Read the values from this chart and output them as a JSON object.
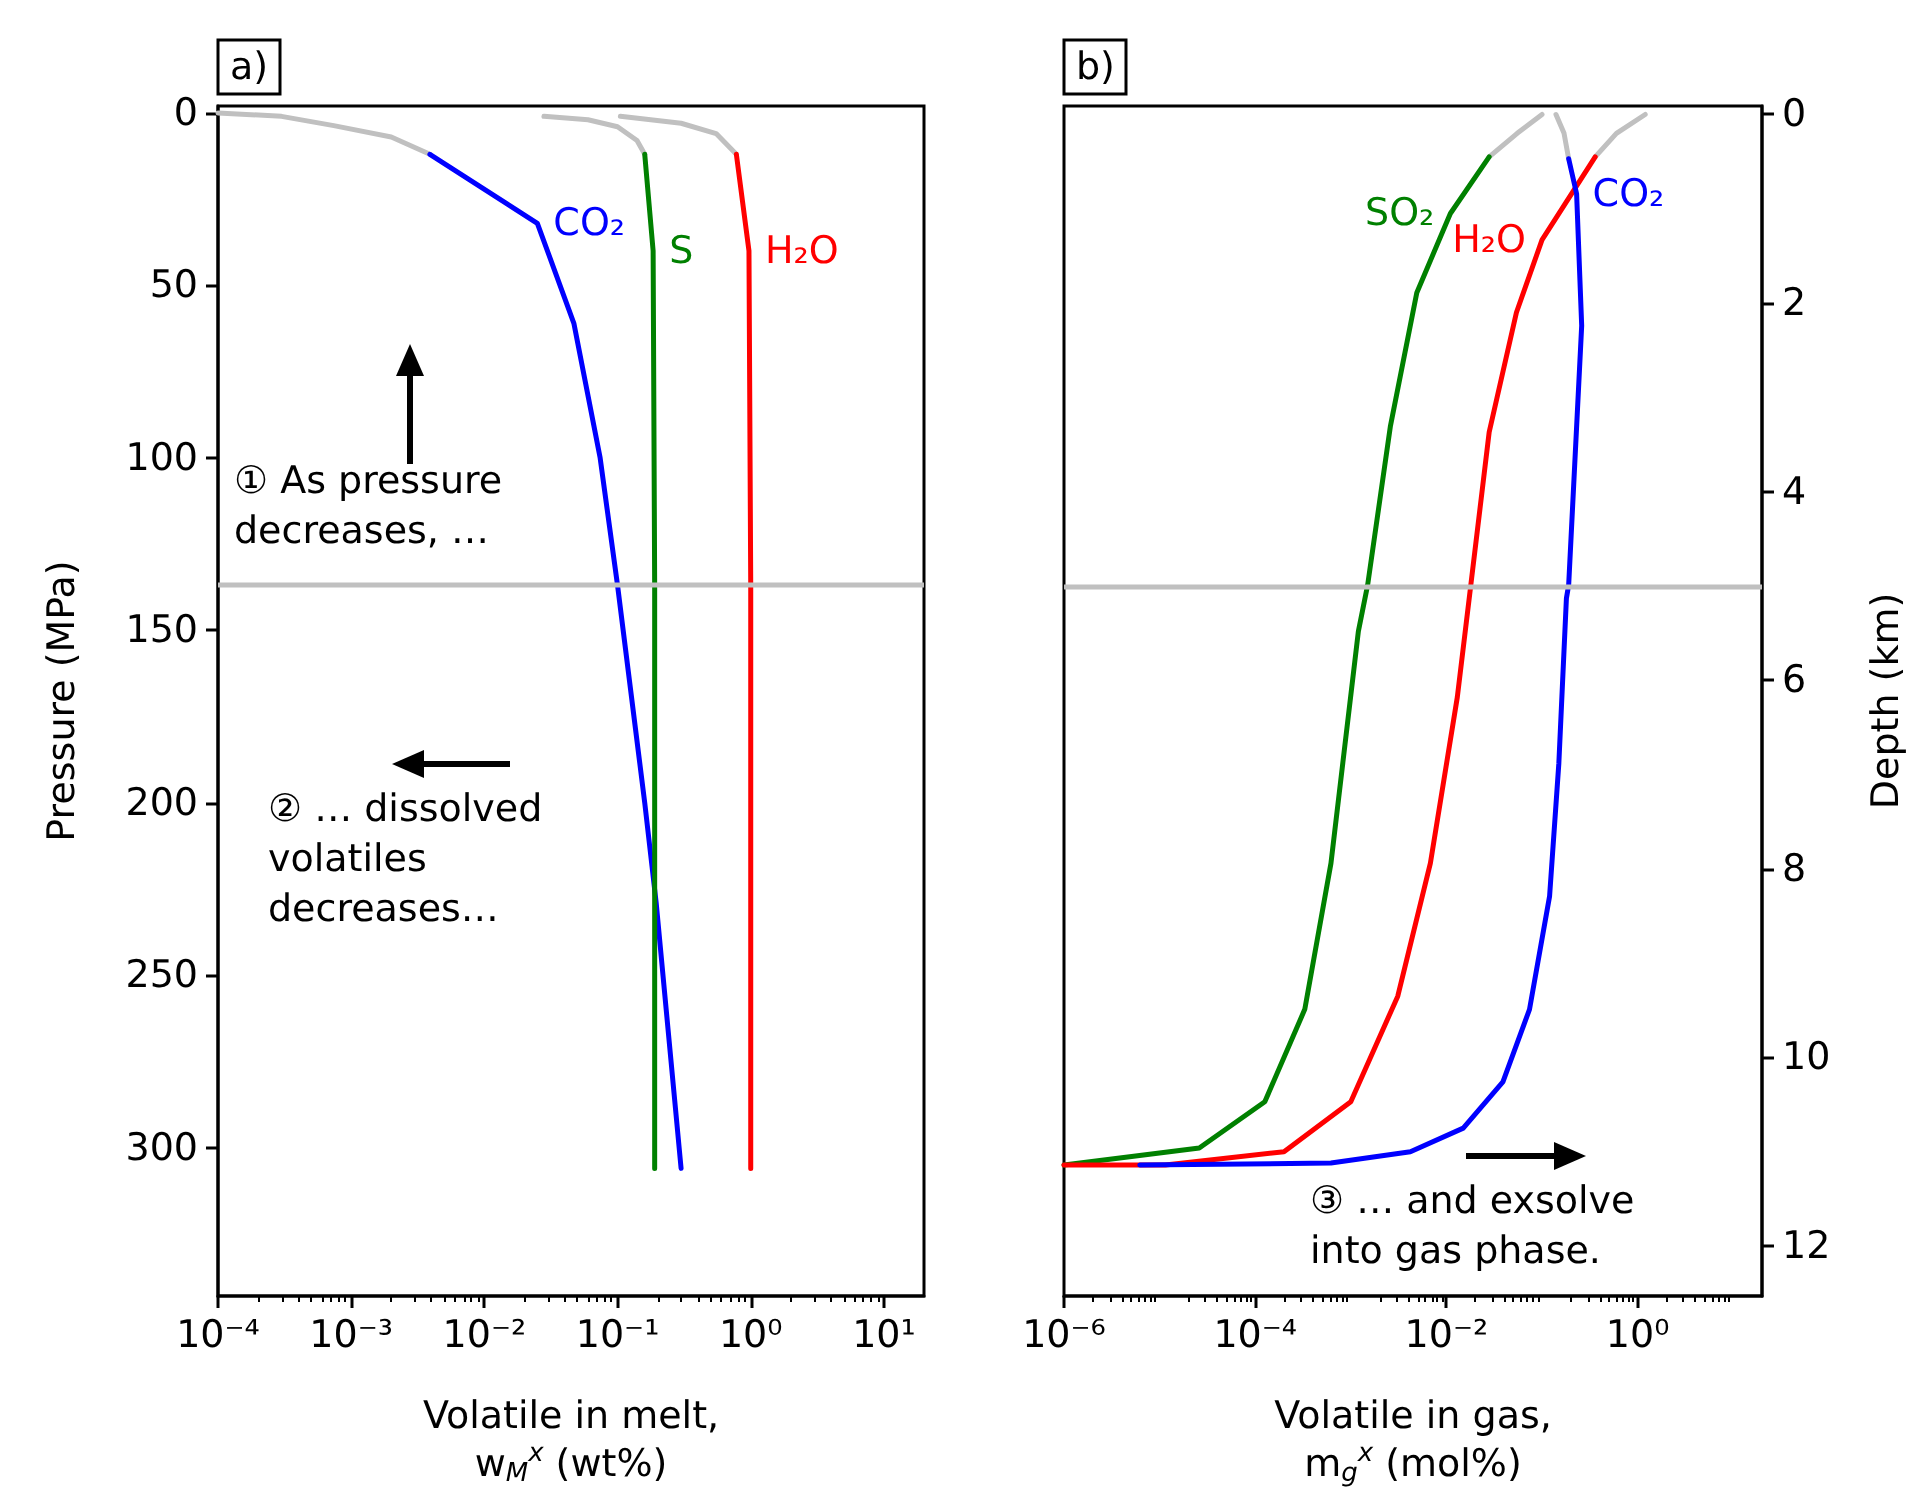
{
  "chart_data": [
    {
      "type": "line",
      "title": "a)",
      "xlabel": "Volatile in melt,\nw$_{M}$$^{x}$ (wt%)",
      "ylabel": "Pressure (MPa)",
      "log": "x",
      "xlim": [
        0.0001,
        20
      ],
      "xticks": [
        {
          "value": 0.0001,
          "label": "10⁻⁴"
        },
        {
          "value": 0.001,
          "label": "10⁻³"
        },
        {
          "value": 0.01,
          "label": "10⁻²"
        },
        {
          "value": 0.1,
          "label": "10⁻¹"
        },
        {
          "value": 1,
          "label": "10⁰"
        },
        {
          "value": 10,
          "label": "10¹"
        }
      ],
      "ylim": [
        343,
        -2
      ],
      "yticks": [
        0,
        50,
        100,
        150,
        200,
        250,
        300
      ],
      "marker": "none",
      "line_style": "solid",
      "grid": false,
      "series": [
        {
          "color": "#c0c0c0",
          "x": [
            0.0001,
            0.0003,
            0.00074,
            0.002,
            0.0039
          ],
          "values": [
            0,
            1,
            3.7,
            7,
            12
          ]
        },
        {
          "color": "#c0c0c0",
          "x": [
            0.028,
            0.06,
            0.1,
            0.14,
            0.16
          ],
          "values": [
            1,
            2,
            4,
            8,
            12
          ]
        },
        {
          "color": "#c0c0c0",
          "x": [
            0.105,
            0.3,
            0.55,
            0.78
          ],
          "values": [
            1,
            3,
            6,
            12
          ]
        },
        {
          "name": "CO₂",
          "color": "#0000ff",
          "x": [
            0.0039,
            0.025,
            0.047,
            0.074,
            0.1,
            0.16,
            0.195,
            0.3
          ],
          "values": [
            12,
            32,
            61,
            100,
            137,
            200,
            229,
            306
          ]
        },
        {
          "name": "S",
          "color": "#008000",
          "x": [
            0.16,
            0.185,
            0.19,
            0.19
          ],
          "values": [
            12,
            40,
            137,
            306
          ]
        },
        {
          "name": "H₂O",
          "color": "#ff0000",
          "x": [
            0.78,
            0.97,
            1.0,
            1.0
          ],
          "values": [
            12,
            40,
            137,
            306
          ]
        }
      ],
      "ref_lines": [
        {
          "axis": "y",
          "value": 137,
          "color": "#c0c0c0"
        }
      ],
      "annotations": [
        "① As pressure\ndecreases, …",
        "② … dissolved\nvolatiles\ndecreases…"
      ]
    },
    {
      "type": "line",
      "title": "b)",
      "xlabel": "Volatile in gas,\nm$_{g}$$^{x}$ (mol%)",
      "y2label": "Depth (km)",
      "log": "x",
      "xlim": [
        1e-06,
        20
      ],
      "xticks": [
        {
          "value": 1e-06,
          "label": "10⁻⁶"
        },
        {
          "value": 0.0001,
          "label": "10⁻⁴"
        },
        {
          "value": 0.01,
          "label": "10⁻²"
        },
        {
          "value": 1,
          "label": "10⁰"
        }
      ],
      "y2lim": [
        12.53,
        -0.09
      ],
      "y2ticks": [
        0,
        2,
        4,
        6,
        8,
        10,
        12
      ],
      "marker": "none",
      "line_style": "solid",
      "grid": false,
      "series": [
        {
          "color": "#c0c0c0",
          "axis": "y2",
          "x": [
            0.028,
            0.055,
            0.1
          ],
          "values": [
            0.45,
            0.2,
            0
          ]
        },
        {
          "color": "#c0c0c0",
          "axis": "y2",
          "x": [
            0.36,
            0.6,
            1.2
          ],
          "values": [
            0.45,
            0.2,
            0
          ]
        },
        {
          "color": "#c0c0c0",
          "axis": "y2",
          "x": [
            0.19,
            0.17,
            0.14
          ],
          "values": [
            0.47,
            0.2,
            0
          ]
        },
        {
          "name": "SO₂",
          "color": "#008000",
          "axis": "y2",
          "x": [
            0.028,
            0.011,
            0.0049,
            0.0026,
            0.0015,
            0.0012,
            0.00062,
            0.00033,
            0.000126,
            2.6e-05,
            1e-06
          ],
          "values": [
            0.45,
            1.05,
            1.89,
            3.3,
            4.99,
            5.48,
            7.94,
            9.49,
            10.47,
            10.96,
            11.14
          ]
        },
        {
          "name": "H₂O",
          "color": "#ff0000",
          "axis": "y2",
          "x": [
            0.36,
            0.1,
            0.054,
            0.028,
            0.018,
            0.013,
            0.0068,
            0.0031,
            0.001,
            0.0002,
            1.15e-05,
            1e-06
          ],
          "values": [
            0.45,
            1.33,
            2.1,
            3.37,
            4.99,
            6.18,
            7.94,
            9.35,
            10.47,
            11.0,
            11.14,
            11.14
          ]
        },
        {
          "name": "CO₂",
          "color": "#0000ff",
          "axis": "y2",
          "x": [
            0.19,
            0.23,
            0.26,
            0.19,
            0.18,
            0.15,
            0.12,
            0.074,
            0.039,
            0.015,
            0.0042,
            0.00062,
            6.2e-06
          ],
          "values": [
            0.47,
            0.84,
            2.24,
            4.99,
            5.13,
            6.88,
            8.29,
            9.49,
            10.26,
            10.75,
            11.0,
            11.12,
            11.14
          ]
        }
      ],
      "ref_lines": [
        {
          "axis": "y2",
          "value": 5,
          "color": "#c0c0c0"
        }
      ],
      "annotations": [
        "③ … and exsolve\ninto gas phase."
      ]
    }
  ]
}
